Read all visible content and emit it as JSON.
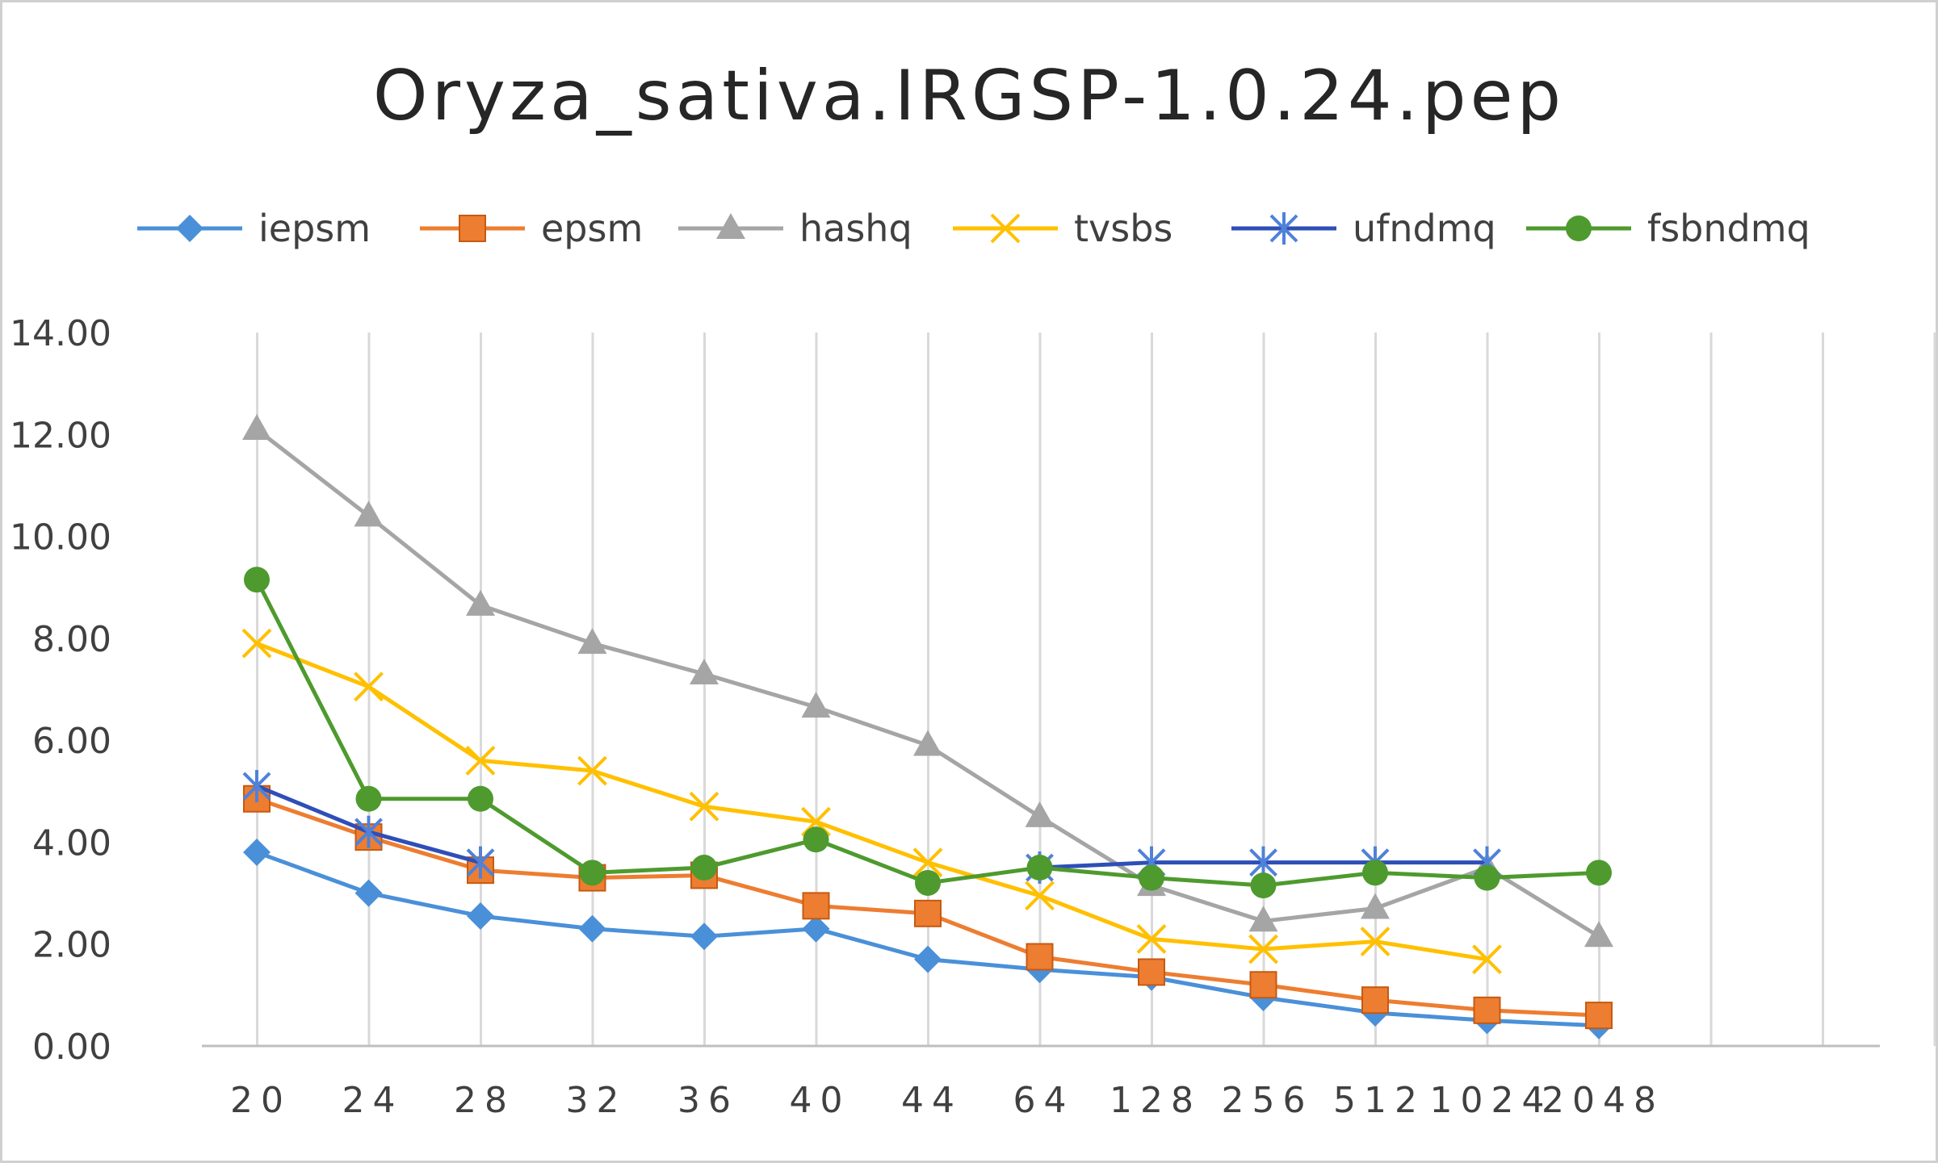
{
  "chart_data": {
    "type": "line",
    "title": "Oryza_sativa.IRGSP-1.0.24.pep",
    "xlabel": "",
    "ylabel": "",
    "categories": [
      "20",
      "24",
      "28",
      "32",
      "36",
      "40",
      "44",
      "64",
      "128",
      "256",
      "512",
      "1024",
      "2048"
    ],
    "y_ticks": [
      "0.00",
      "2.00",
      "4.00",
      "6.00",
      "8.00",
      "10.00",
      "12.00",
      "14.00"
    ],
    "ylim": [
      0,
      14
    ],
    "grid": "vertical",
    "legend_position": "top",
    "series": [
      {
        "name": "iepsm",
        "color": "#4a90d9",
        "marker": "diamond",
        "values": [
          3.8,
          3.0,
          2.55,
          2.3,
          2.15,
          2.3,
          1.7,
          1.5,
          1.35,
          0.95,
          0.65,
          0.5,
          0.4
        ]
      },
      {
        "name": "epsm",
        "color": "#ed7d31",
        "marker": "square",
        "values": [
          4.85,
          4.1,
          3.45,
          3.3,
          3.35,
          2.75,
          2.6,
          1.75,
          1.45,
          1.2,
          0.9,
          0.7,
          0.6
        ]
      },
      {
        "name": "hashq",
        "color": "#a5a5a5",
        "marker": "triangle",
        "values": [
          12.1,
          10.4,
          8.65,
          7.9,
          7.3,
          6.65,
          5.9,
          4.5,
          3.15,
          2.45,
          2.7,
          3.5,
          2.15
        ]
      },
      {
        "name": "tvsbs",
        "color": "#ffc000",
        "marker": "x",
        "values": [
          7.9,
          7.05,
          5.6,
          5.4,
          4.7,
          4.4,
          3.6,
          2.95,
          2.1,
          1.9,
          2.05,
          1.7,
          null
        ]
      },
      {
        "name": "ufndmq",
        "color": "#2e4fb8",
        "marker": "star",
        "values": [
          5.1,
          4.2,
          3.6,
          null,
          null,
          null,
          null,
          3.5,
          3.6,
          3.6,
          3.6,
          3.6,
          null
        ]
      },
      {
        "name": "fsbndmq",
        "color": "#4e9a2e",
        "marker": "circle",
        "values": [
          9.15,
          4.85,
          4.85,
          3.4,
          3.5,
          4.05,
          3.2,
          3.5,
          3.3,
          3.15,
          3.4,
          3.3,
          3.4
        ]
      }
    ]
  }
}
